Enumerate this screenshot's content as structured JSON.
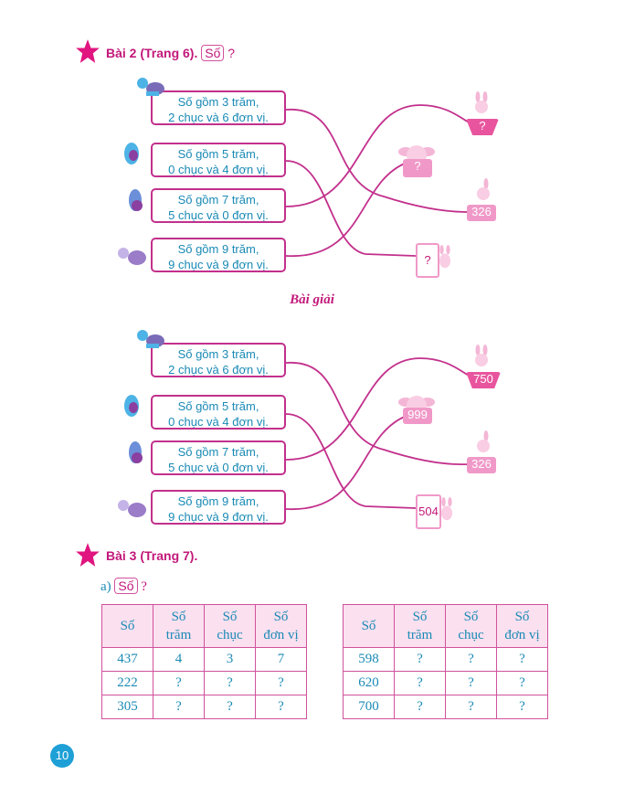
{
  "bai2": {
    "title": "Bài 2 (Trang 6).",
    "so": "Số",
    "q": "?"
  },
  "items": [
    {
      "l1": "Số gồm 3 trăm,",
      "l2": "2 chục và 6 đơn vị."
    },
    {
      "l1": "Số gồm 5 trăm,",
      "l2": "0 chục và 4 đơn vị."
    },
    {
      "l1": "Số gồm 7 trăm,",
      "l2": "5 chục và 0 đơn vị."
    },
    {
      "l1": "Số gồm 9 trăm,",
      "l2": "9 chục và 9 đơn vị."
    }
  ],
  "question_tags": {
    "basket": "?",
    "big_bunny": "?",
    "small_bunny": "326",
    "card": "?"
  },
  "solution": {
    "title": "Bài giải",
    "basket": "750",
    "big_bunny": "999",
    "small_bunny": "326",
    "card": "504"
  },
  "bai3": {
    "title": "Bài 3 (Trang 7).",
    "part": "a)",
    "so": "Số",
    "q": "?"
  },
  "table_headers": [
    [
      "Số"
    ],
    [
      "Số",
      "trăm"
    ],
    [
      "Số",
      "chục"
    ],
    [
      "Số",
      "đơn vị"
    ]
  ],
  "table1": [
    [
      "437",
      "4",
      "3",
      "7"
    ],
    [
      "222",
      "?",
      "?",
      "?"
    ],
    [
      "305",
      "?",
      "?",
      "?"
    ]
  ],
  "table2": [
    [
      "598",
      "?",
      "?",
      "?"
    ],
    [
      "620",
      "?",
      "?",
      "?"
    ],
    [
      "700",
      "?",
      "?",
      "?"
    ]
  ],
  "page_number": "10",
  "colors": {
    "accent": "#c2187a",
    "text": "#1a8ab5",
    "tag": "#f099c8"
  }
}
